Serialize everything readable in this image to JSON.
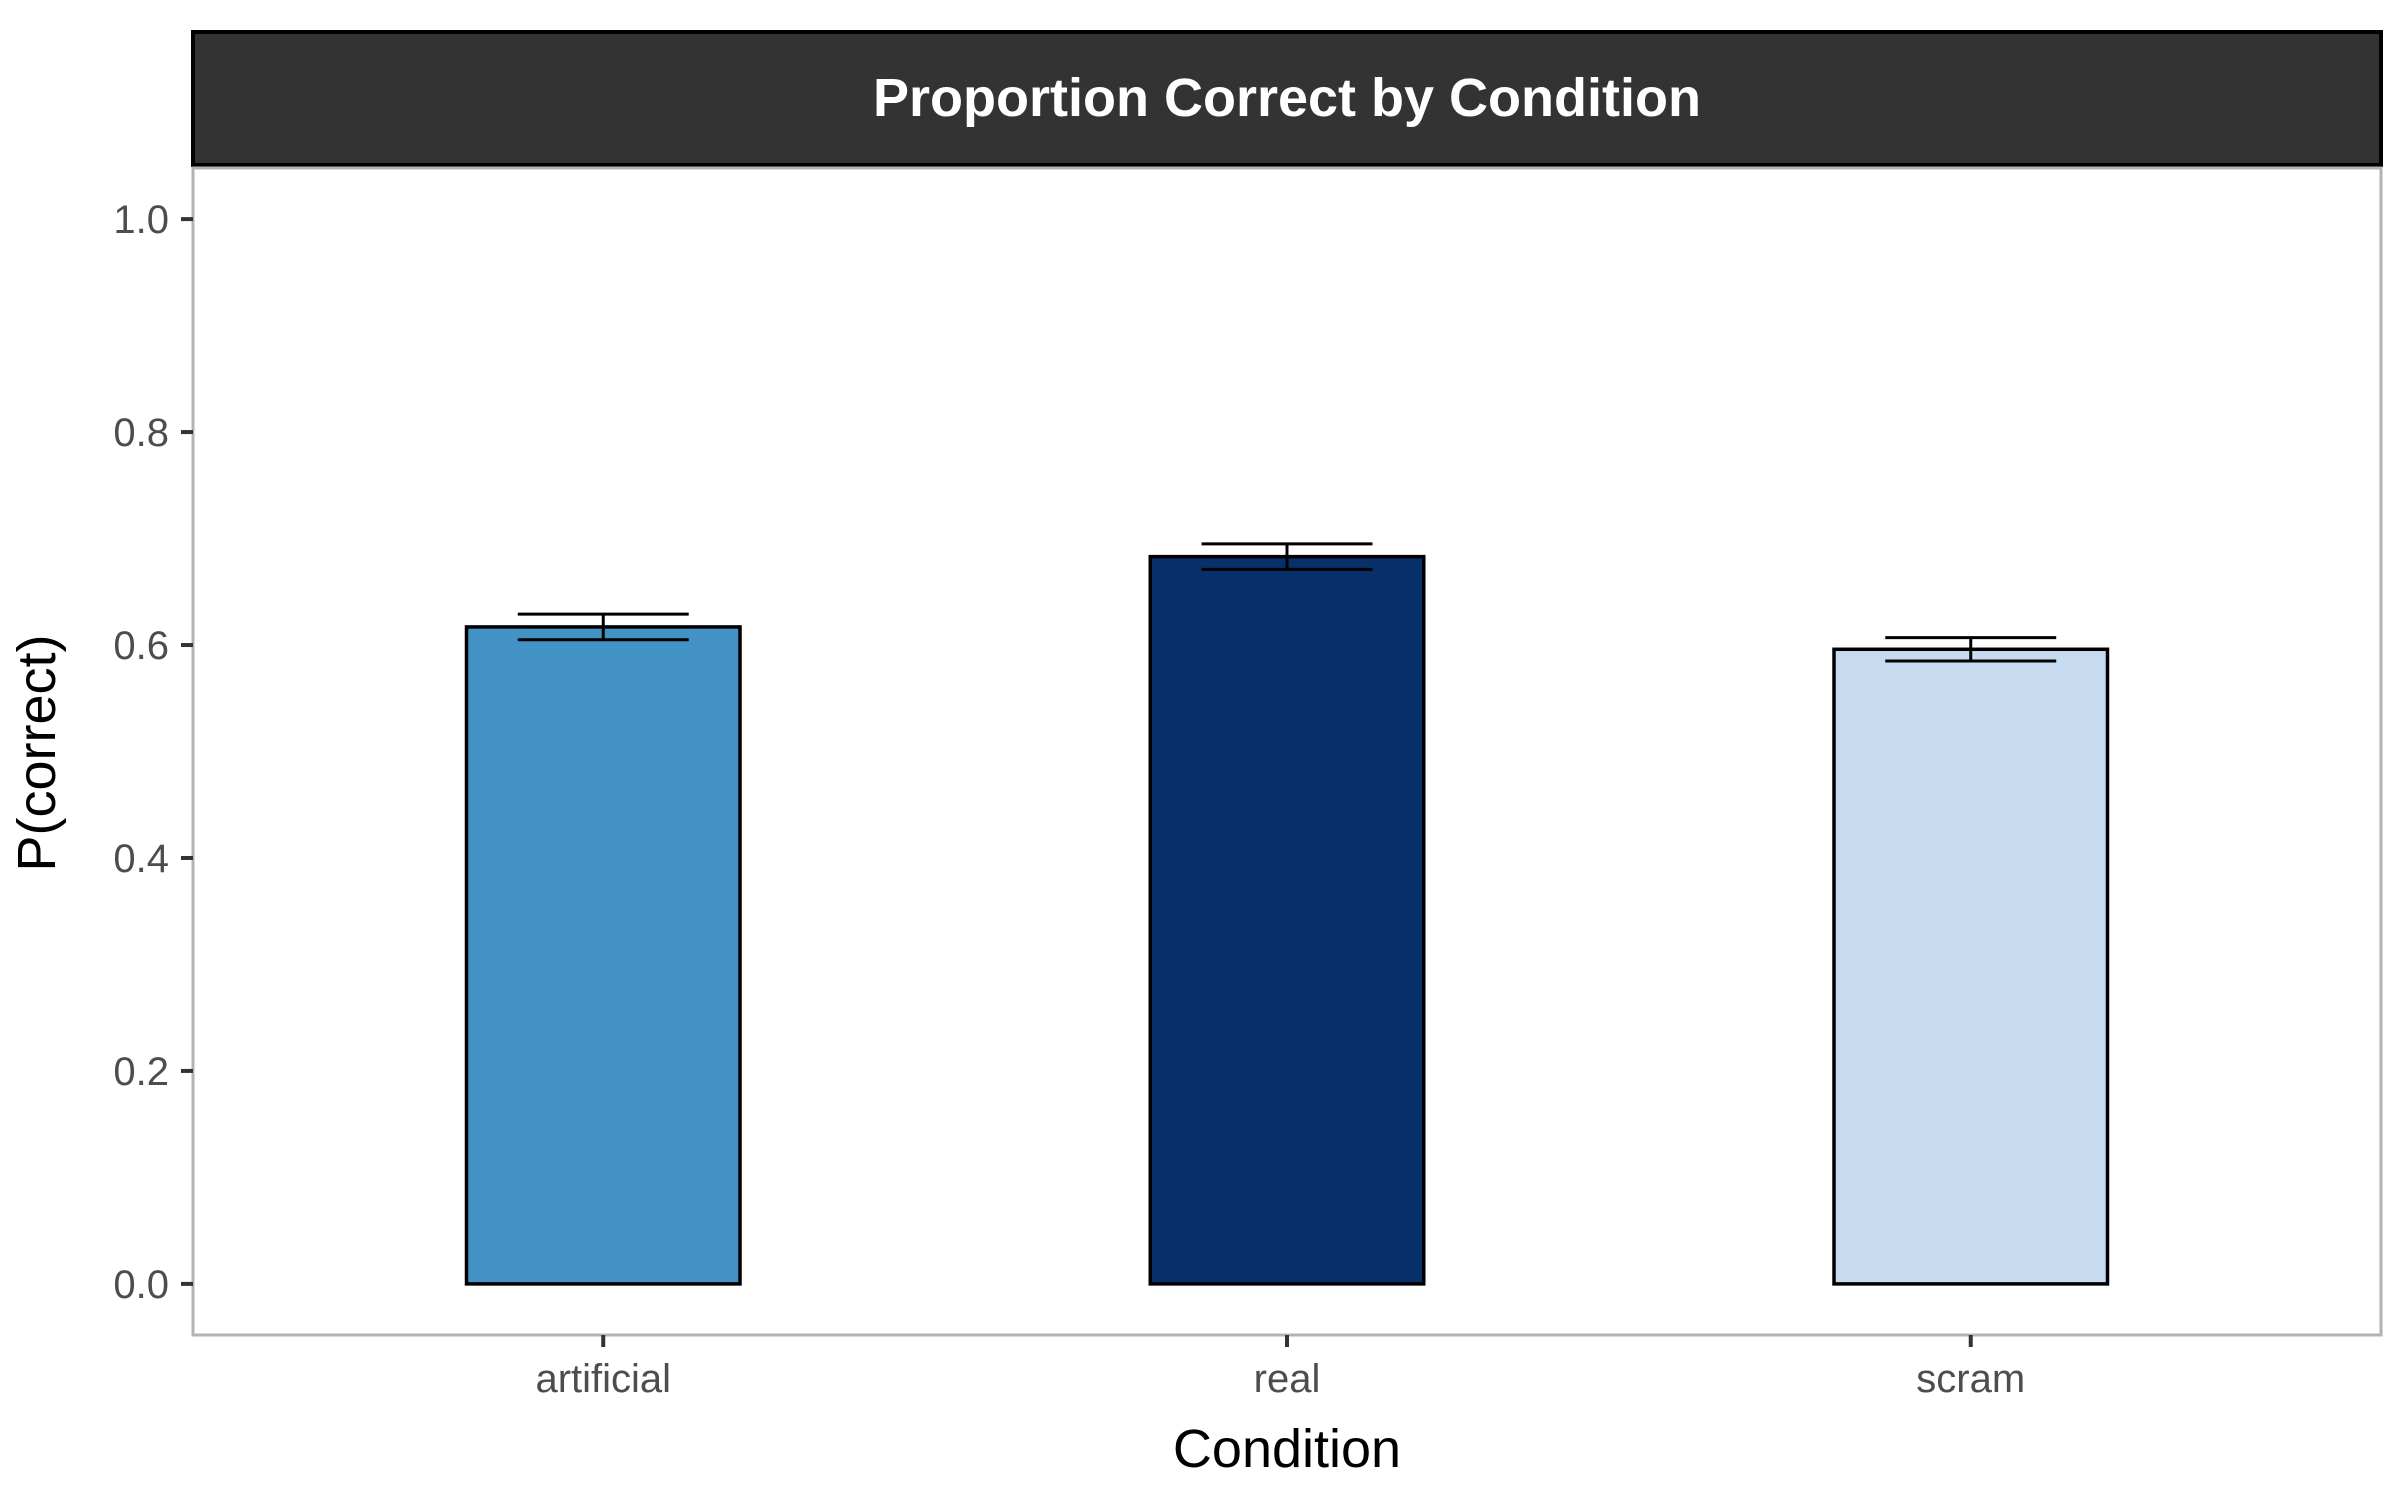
{
  "chart_data": {
    "type": "bar",
    "title": "Proportion Correct by Condition",
    "xlabel": "Condition",
    "ylabel": "P(correct)",
    "categories": [
      "artificial",
      "real",
      "scram"
    ],
    "values": [
      0.617,
      0.683,
      0.596
    ],
    "error_low": [
      0.605,
      0.671,
      0.585
    ],
    "error_high": [
      0.629,
      0.695,
      0.607
    ],
    "colors": [
      "#4292c6",
      "#08306b",
      "#c6dbef"
    ],
    "ylim": [
      -0.048,
      1.048
    ],
    "yticks": [
      0.0,
      0.2,
      0.4,
      0.6,
      0.8,
      1.0
    ],
    "ytick_labels": [
      "0.0",
      "0.2",
      "0.4",
      "0.6",
      "0.8",
      "1.0"
    ],
    "grid": false,
    "legend": "none"
  }
}
